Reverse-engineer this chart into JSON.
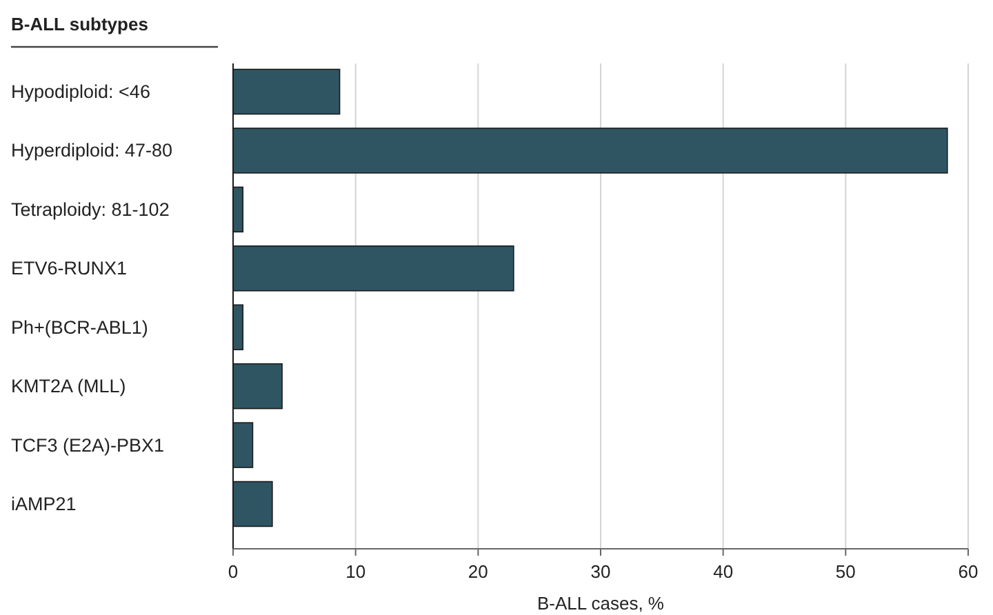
{
  "chart_data": {
    "type": "bar",
    "orientation": "horizontal",
    "ylabel": "B-ALL subtypes",
    "xlabel": "B-ALL cases, %",
    "categories": [
      "Hypodiploid: <46",
      "Hyperdiploid: 47-80",
      "Tetraploidy: 81-102",
      "ETV6-RUNX1",
      "Ph+(BCR-ABL1)",
      "KMT2A (MLL)",
      "TCF3 (E2A)-PBX1",
      "iAMP21"
    ],
    "values": [
      8.7,
      58.3,
      0.8,
      22.9,
      0.8,
      4.0,
      1.6,
      3.2
    ],
    "color": "#2f5563",
    "xlim": [
      0,
      60
    ],
    "xticks": [
      0,
      10,
      20,
      30,
      40,
      50,
      60
    ],
    "grid": "x"
  }
}
